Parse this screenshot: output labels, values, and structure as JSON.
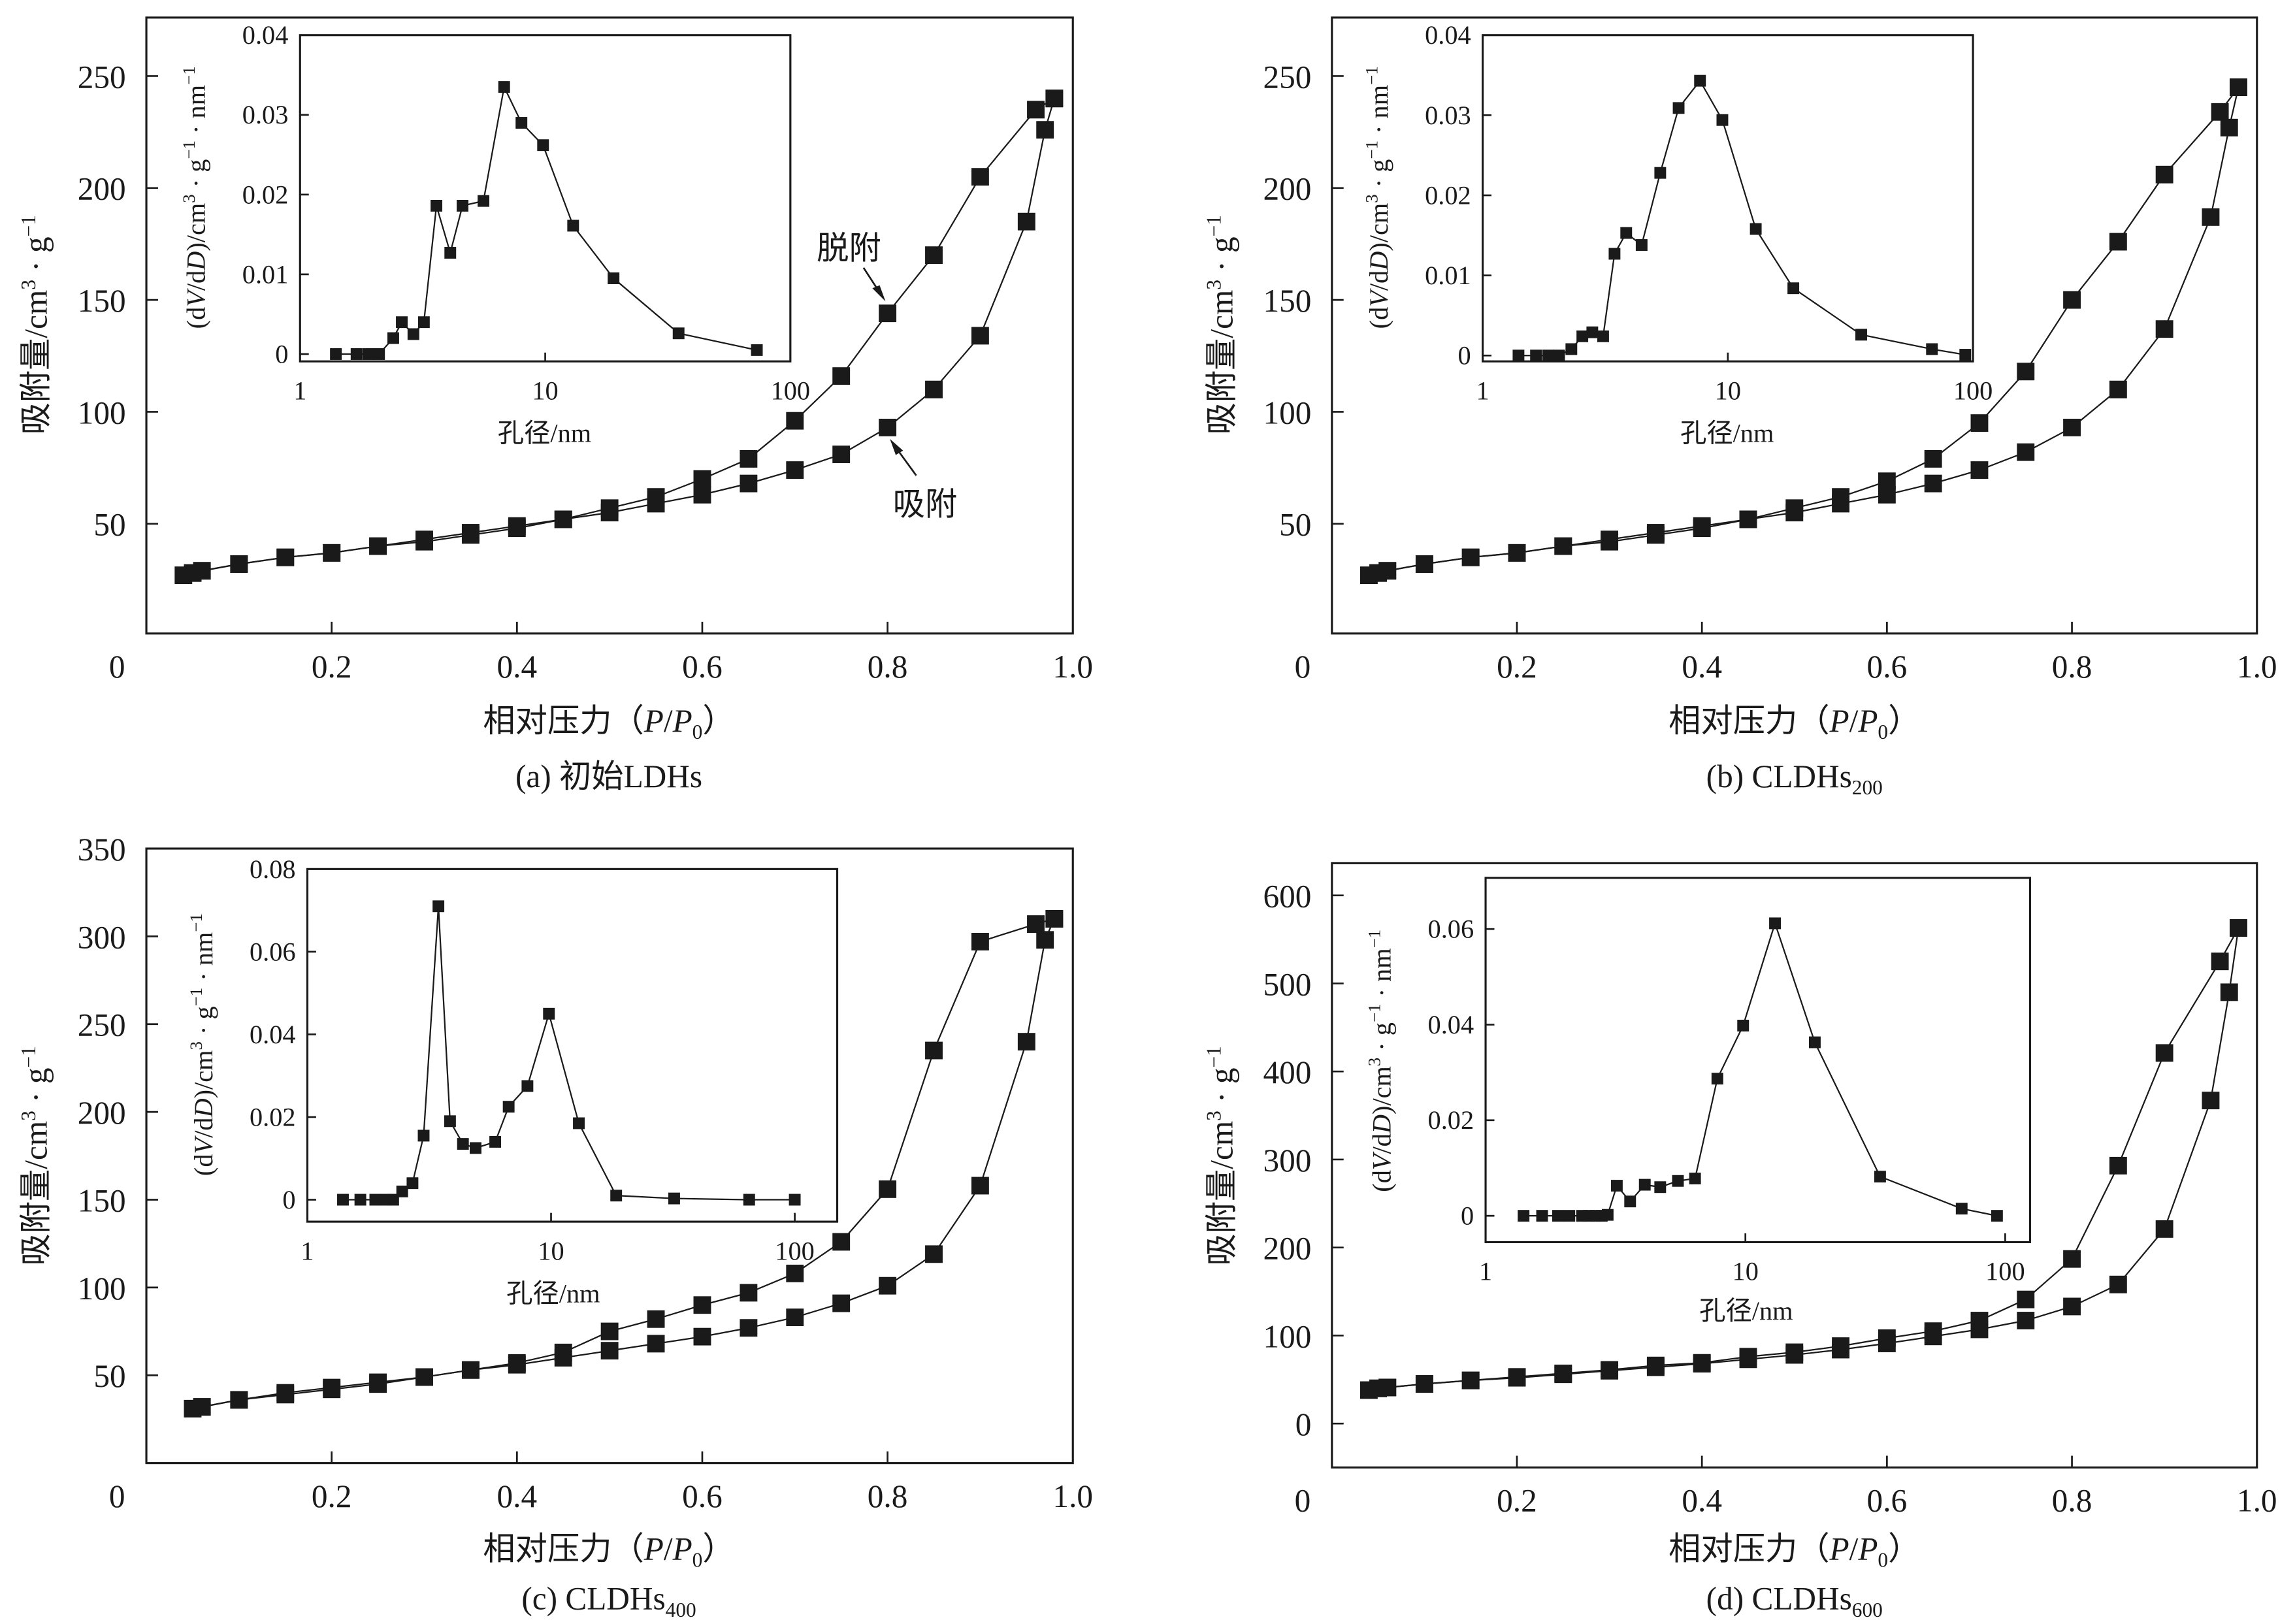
{
  "figure": {
    "panels": [
      {
        "id": "a",
        "caption_prefix": "(a) ",
        "caption_main": "初始LDHs",
        "caption_sub": ""
      },
      {
        "id": "b",
        "caption_prefix": "(b) ",
        "caption_main": "CLDHs",
        "caption_sub": "200"
      },
      {
        "id": "c",
        "caption_prefix": "(c) ",
        "caption_main": "CLDHs",
        "caption_sub": "400"
      },
      {
        "id": "d",
        "caption_prefix": "(d) ",
        "caption_main": "CLDHs",
        "caption_sub": "600"
      }
    ],
    "annotations": {
      "desorption": "脱附",
      "adsorption": "吸附"
    }
  },
  "chart_data": [
    {
      "type": "line",
      "panel": "a",
      "title": "(a) 初始LDHs",
      "xlabel": "相对压力（P/P0）",
      "ylabel": "吸附量/cm³·g⁻¹",
      "xlim": [
        0,
        1.0
      ],
      "ylim": [
        0,
        270
      ],
      "xticks": [
        0,
        0.2,
        0.4,
        0.6,
        0.8,
        1.0
      ],
      "xtick_labels": [
        "0",
        "0.2",
        "0.4",
        "0.6",
        "0.8",
        "1.0"
      ],
      "yticks": [
        50,
        100,
        150,
        200,
        250
      ],
      "ytick_labels": [
        "50",
        "100",
        "150",
        "200",
        "250"
      ],
      "grid": false,
      "series": [
        {
          "name": "吸附",
          "x": [
            0.04,
            0.05,
            0.06,
            0.1,
            0.15,
            0.2,
            0.25,
            0.3,
            0.35,
            0.4,
            0.45,
            0.5,
            0.55,
            0.6,
            0.65,
            0.7,
            0.75,
            0.8,
            0.85,
            0.9,
            0.95,
            0.97,
            0.98
          ],
          "y": [
            27,
            28,
            29,
            32,
            35,
            37,
            40,
            42,
            45,
            48,
            52,
            55,
            59,
            63,
            68,
            74,
            81,
            93,
            110,
            134,
            185,
            226,
            240
          ]
        },
        {
          "name": "脱附",
          "x": [
            0.98,
            0.96,
            0.9,
            0.85,
            0.8,
            0.75,
            0.7,
            0.65,
            0.6,
            0.55,
            0.5,
            0.45,
            0.4,
            0.35,
            0.3,
            0.25,
            0.2,
            0.15,
            0.1,
            0.06,
            0.05
          ],
          "y": [
            240,
            235,
            205,
            170,
            144,
            116,
            96,
            79,
            70,
            62,
            57,
            52,
            49,
            46,
            43,
            40,
            37,
            35,
            32,
            29,
            28
          ]
        }
      ],
      "annotations": [
        {
          "text": "脱附",
          "target_x": 0.8,
          "target_y": 144
        },
        {
          "text": "吸附",
          "target_x": 0.8,
          "target_y": 93
        }
      ],
      "inset": {
        "type": "line",
        "xlabel": "孔径/nm",
        "ylabel": "(dV/dD)/cm³·g⁻¹·nm⁻¹",
        "xscale": "log",
        "xlim": [
          1,
          100
        ],
        "ylim": [
          -0.001,
          0.04
        ],
        "xticks": [
          1,
          10,
          100
        ],
        "xtick_labels": [
          "1",
          "10",
          "100"
        ],
        "yticks": [
          0,
          0.01,
          0.02,
          0.03,
          0.04
        ],
        "ytick_labels": [
          "0",
          "0.01",
          "0.02",
          "0.03",
          "0.04"
        ],
        "x": [
          1.4,
          1.7,
          1.9,
          2.1,
          2.4,
          2.6,
          2.9,
          3.2,
          3.6,
          4.1,
          4.6,
          5.6,
          6.8,
          8.0,
          9.8,
          13,
          19,
          35,
          73
        ],
        "y": [
          0,
          0,
          0,
          0,
          0.002,
          0.004,
          0.0025,
          0.004,
          0.0186,
          0.0127,
          0.0186,
          0.0192,
          0.0335,
          0.029,
          0.0262,
          0.0161,
          0.0095,
          0.0026,
          0.0005
        ]
      }
    },
    {
      "type": "line",
      "panel": "b",
      "title": "(b) CLDHs200",
      "xlabel": "相对压力（P/P0）",
      "ylabel": "吸附量/cm³·g⁻¹",
      "xlim": [
        0,
        1.0
      ],
      "ylim": [
        0,
        270
      ],
      "xticks": [
        0,
        0.2,
        0.4,
        0.6,
        0.8,
        1.0
      ],
      "xtick_labels": [
        "0",
        "0.2",
        "0.4",
        "0.6",
        "0.8",
        "1.0"
      ],
      "yticks": [
        50,
        100,
        150,
        200,
        250
      ],
      "ytick_labels": [
        "50",
        "100",
        "150",
        "200",
        "250"
      ],
      "grid": false,
      "series": [
        {
          "name": "吸附",
          "x": [
            0.04,
            0.05,
            0.06,
            0.1,
            0.15,
            0.2,
            0.25,
            0.3,
            0.35,
            0.4,
            0.45,
            0.5,
            0.55,
            0.6,
            0.65,
            0.7,
            0.75,
            0.8,
            0.85,
            0.9,
            0.95,
            0.97,
            0.98
          ],
          "y": [
            27,
            28,
            29,
            32,
            35,
            37,
            40,
            42,
            45,
            48,
            52,
            55,
            59,
            63,
            68,
            74,
            82,
            93,
            110,
            137,
            187,
            227,
            245
          ]
        },
        {
          "name": "脱附",
          "x": [
            0.98,
            0.96,
            0.9,
            0.85,
            0.8,
            0.75,
            0.7,
            0.65,
            0.6,
            0.55,
            0.5,
            0.45,
            0.4,
            0.35,
            0.3,
            0.25,
            0.2,
            0.15,
            0.1,
            0.06,
            0.05
          ],
          "y": [
            245,
            234,
            206,
            176,
            150,
            118,
            95,
            79,
            69,
            62,
            57,
            52,
            49,
            46,
            43,
            40,
            37,
            35,
            32,
            29,
            28
          ]
        }
      ],
      "inset": {
        "type": "line",
        "xlabel": "孔径/nm",
        "ylabel": "(dV/dD)/cm³·g⁻¹·nm⁻¹",
        "xscale": "log",
        "xlim": [
          1,
          100
        ],
        "ylim": [
          -0.001,
          0.04
        ],
        "xticks": [
          1,
          10,
          100
        ],
        "xtick_labels": [
          "1",
          "10",
          "100"
        ],
        "yticks": [
          0,
          0.01,
          0.02,
          0.03,
          0.04
        ],
        "ytick_labels": [
          "0",
          "0.01",
          "0.02",
          "0.03",
          "0.04"
        ],
        "x": [
          1.4,
          1.65,
          1.85,
          2.05,
          2.3,
          2.55,
          2.8,
          3.1,
          3.45,
          3.85,
          4.45,
          5.3,
          6.3,
          7.7,
          9.5,
          13,
          18.5,
          35,
          68,
          93
        ],
        "y": [
          0,
          0,
          0,
          0,
          0.0008,
          0.0024,
          0.0029,
          0.0024,
          0.0127,
          0.0153,
          0.0138,
          0.0228,
          0.0309,
          0.0343,
          0.0294,
          0.0158,
          0.0084,
          0.0026,
          0.0008,
          0.0001
        ]
      }
    },
    {
      "type": "line",
      "panel": "c",
      "title": "(c) CLDHs400",
      "xlabel": "相对压力（P/P0）",
      "ylabel": "吸附量/cm³·g⁻¹",
      "xlim": [
        0,
        1.0
      ],
      "ylim": [
        0,
        350
      ],
      "xticks": [
        0,
        0.2,
        0.4,
        0.6,
        0.8,
        1.0
      ],
      "xtick_labels": [
        "0",
        "0.2",
        "0.4",
        "0.6",
        "0.8",
        "1.0"
      ],
      "yticks": [
        50,
        100,
        150,
        200,
        250,
        300,
        350
      ],
      "ytick_labels": [
        "50",
        "100",
        "150",
        "200",
        "250",
        "300",
        "350"
      ],
      "grid": false,
      "series": [
        {
          "name": "吸附",
          "x": [
            0.05,
            0.06,
            0.1,
            0.15,
            0.2,
            0.25,
            0.3,
            0.35,
            0.4,
            0.45,
            0.5,
            0.55,
            0.6,
            0.65,
            0.7,
            0.75,
            0.8,
            0.85,
            0.9,
            0.95,
            0.97,
            0.98
          ],
          "y": [
            31,
            32,
            36,
            40,
            43,
            46,
            49,
            53,
            56,
            60,
            64,
            68,
            72,
            77,
            83,
            91,
            101,
            119,
            158,
            240,
            298,
            310
          ]
        },
        {
          "name": "脱附",
          "x": [
            0.98,
            0.96,
            0.9,
            0.85,
            0.8,
            0.75,
            0.7,
            0.65,
            0.6,
            0.55,
            0.5,
            0.45,
            0.4,
            0.35,
            0.3,
            0.25,
            0.2,
            0.15,
            0.1,
            0.06
          ],
          "y": [
            310,
            307,
            297,
            235,
            156,
            126,
            108,
            97,
            90,
            82,
            75,
            63,
            57,
            53,
            49,
            45,
            42,
            39,
            36,
            32
          ]
        }
      ],
      "inset": {
        "type": "line",
        "xlabel": "孔径/nm",
        "ylabel": "(dV/dD)/cm³·g⁻¹·nm⁻¹",
        "xscale": "log",
        "xlim": [
          1,
          100
        ],
        "ylim": [
          -0.005,
          0.08
        ],
        "xticks": [
          1,
          10,
          100
        ],
        "xtick_labels": [
          "1",
          "10",
          "100"
        ],
        "yticks": [
          0,
          0.02,
          0.04,
          0.06,
          0.08
        ],
        "ytick_labels": [
          "0",
          "0.02",
          "0.04",
          "0.06",
          "0.08"
        ],
        "x": [
          1.4,
          1.65,
          1.9,
          2.1,
          2.25,
          2.45,
          2.7,
          3.0,
          3.45,
          3.85,
          4.35,
          4.9,
          5.9,
          6.7,
          8.0,
          9.8,
          13,
          18.5,
          32,
          65,
          100
        ],
        "y": [
          0,
          0,
          0,
          0,
          0,
          0.002,
          0.004,
          0.0155,
          0.071,
          0.019,
          0.0135,
          0.0125,
          0.014,
          0.0225,
          0.0275,
          0.045,
          0.0185,
          0.001,
          0.0003,
          0,
          0
        ]
      }
    },
    {
      "type": "line",
      "panel": "d",
      "title": "(d) CLDHs600",
      "xlabel": "相对压力（P/P0）",
      "ylabel": "吸附量/cm³·g⁻¹",
      "xlim": [
        0,
        1.0
      ],
      "ylim": [
        -50,
        650
      ],
      "xticks": [
        0,
        0.2,
        0.4,
        0.6,
        0.8,
        1.0
      ],
      "xtick_labels": [
        "0",
        "0.2",
        "0.4",
        "0.6",
        "0.8",
        "1.0"
      ],
      "yticks": [
        0,
        100,
        200,
        300,
        400,
        500,
        600
      ],
      "ytick_labels": [
        "0",
        "100",
        "200",
        "300",
        "400",
        "500",
        "600"
      ],
      "grid": false,
      "series": [
        {
          "name": "吸附",
          "x": [
            0.04,
            0.05,
            0.06,
            0.1,
            0.15,
            0.2,
            0.25,
            0.3,
            0.35,
            0.4,
            0.45,
            0.5,
            0.55,
            0.6,
            0.65,
            0.7,
            0.75,
            0.8,
            0.85,
            0.9,
            0.95,
            0.97,
            0.98
          ],
          "y": [
            38,
            40,
            41,
            45,
            49,
            52,
            56,
            60,
            64,
            68,
            73,
            78,
            84,
            91,
            99,
            107,
            117,
            133,
            158,
            221,
            367,
            490,
            563
          ]
        },
        {
          "name": "脱附",
          "x": [
            0.98,
            0.96,
            0.9,
            0.85,
            0.8,
            0.75,
            0.7,
            0.65,
            0.6,
            0.55,
            0.5,
            0.45,
            0.4,
            0.35,
            0.3,
            0.25,
            0.2,
            0.15,
            0.1,
            0.06,
            0.05
          ],
          "y": [
            563,
            525,
            421,
            293,
            187,
            141,
            117,
            105,
            97,
            88,
            81,
            76,
            69,
            66,
            61,
            57,
            53,
            49,
            45,
            41,
            40
          ]
        }
      ],
      "inset": {
        "type": "line",
        "xlabel": "孔径/nm",
        "ylabel": "(dV/dD)/cm³·g⁻¹·nm⁻¹",
        "xscale": "log",
        "xlim": [
          1,
          100
        ],
        "ylim": [
          -0.005,
          0.07
        ],
        "xticks": [
          1,
          10,
          100
        ],
        "xtick_labels": [
          "1",
          "10",
          "100"
        ],
        "yticks": [
          0,
          0.02,
          0.04,
          0.06
        ],
        "ytick_labels": [
          "0",
          "0.02",
          "0.04",
          "0.06"
        ],
        "x": [
          1.4,
          1.65,
          1.9,
          2.1,
          2.35,
          2.5,
          2.65,
          2.8,
          2.95,
          3.2,
          3.6,
          4.1,
          4.7,
          5.5,
          6.4,
          7.8,
          9.8,
          13,
          18.5,
          33,
          68,
          93
        ],
        "y": [
          0,
          0,
          0,
          0,
          0,
          0,
          0,
          0,
          0.0002,
          0.0063,
          0.003,
          0.0065,
          0.006,
          0.0073,
          0.0078,
          0.0287,
          0.0398,
          0.0612,
          0.0363,
          0.0082,
          0.0015,
          0
        ]
      }
    }
  ]
}
